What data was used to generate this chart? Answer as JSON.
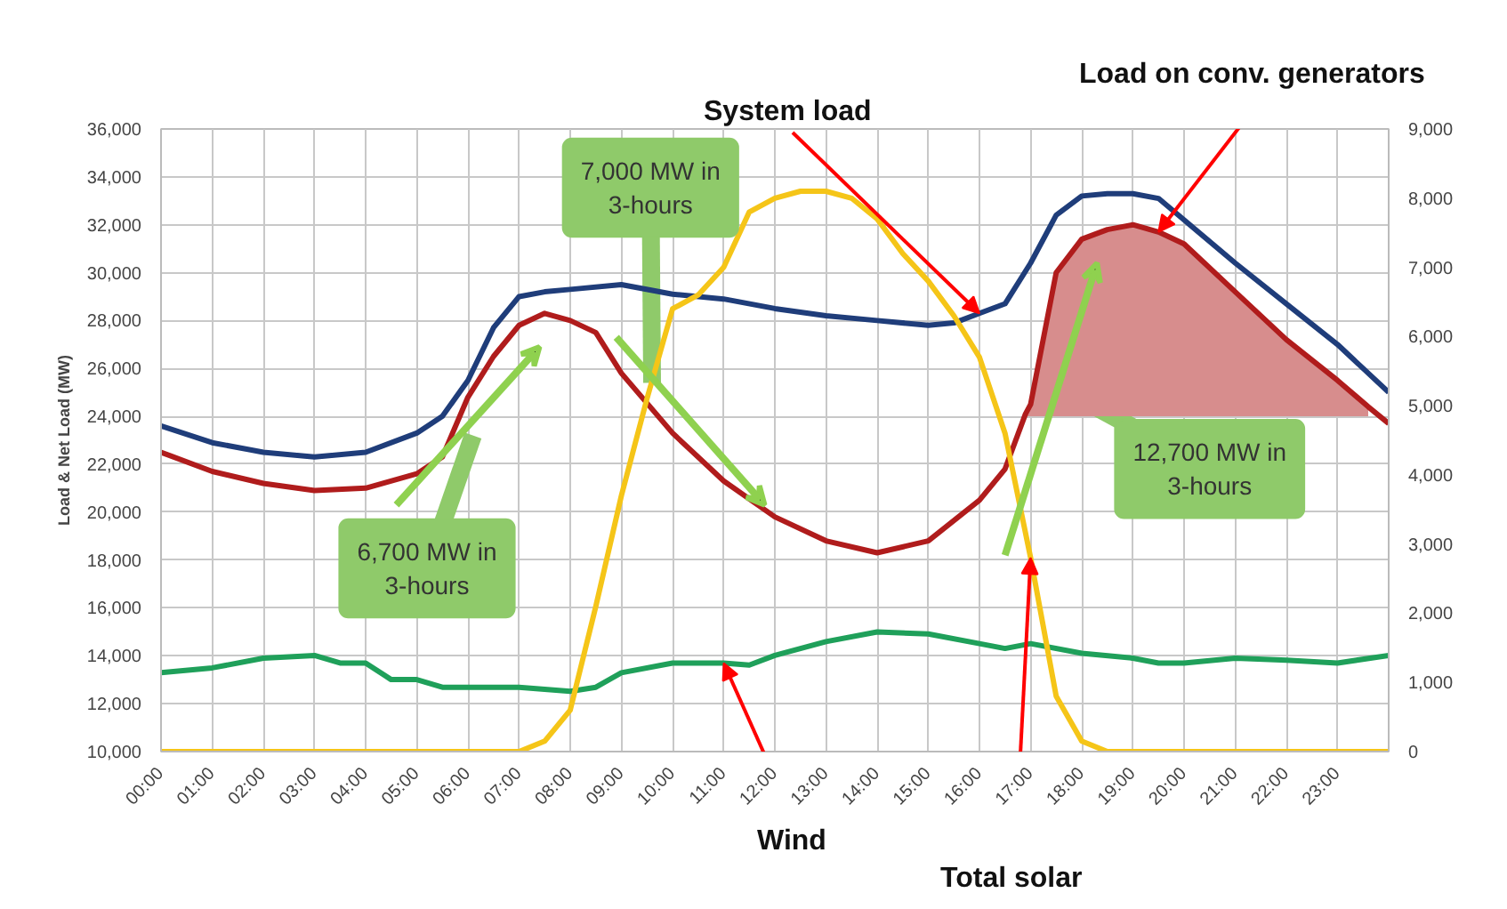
{
  "chart_data": {
    "type": "line",
    "ylabel": "Load & Net Load (MW)",
    "grid": true,
    "xlim": [
      0,
      24
    ],
    "ylim": [
      10000,
      36000
    ],
    "y2lim": [
      0,
      9000
    ],
    "xticks": [
      {
        "value": 0,
        "label": "00:00"
      },
      {
        "value": 1,
        "label": "01:00"
      },
      {
        "value": 2,
        "label": "02:00"
      },
      {
        "value": 3,
        "label": "03:00"
      },
      {
        "value": 4,
        "label": "04:00"
      },
      {
        "value": 5,
        "label": "05:00"
      },
      {
        "value": 6,
        "label": "06:00"
      },
      {
        "value": 7,
        "label": "07:00"
      },
      {
        "value": 8,
        "label": "08:00"
      },
      {
        "value": 9,
        "label": "09:00"
      },
      {
        "value": 10,
        "label": "10:00"
      },
      {
        "value": 11,
        "label": "11:00"
      },
      {
        "value": 12,
        "label": "12:00"
      },
      {
        "value": 13,
        "label": "13:00"
      },
      {
        "value": 14,
        "label": "14:00"
      },
      {
        "value": 15,
        "label": "15:00"
      },
      {
        "value": 16,
        "label": "16:00"
      },
      {
        "value": 17,
        "label": "17:00"
      },
      {
        "value": 18,
        "label": "18:00"
      },
      {
        "value": 19,
        "label": "19:00"
      },
      {
        "value": 20,
        "label": "20:00"
      },
      {
        "value": 21,
        "label": "21:00"
      },
      {
        "value": 22,
        "label": "22:00"
      },
      {
        "value": 23,
        "label": "23:00"
      }
    ],
    "yticks": [
      {
        "value": 10000,
        "label": "10,000"
      },
      {
        "value": 12000,
        "label": "12,000"
      },
      {
        "value": 14000,
        "label": "14,000"
      },
      {
        "value": 16000,
        "label": "16,000"
      },
      {
        "value": 18000,
        "label": "18,000"
      },
      {
        "value": 20000,
        "label": "20,000"
      },
      {
        "value": 22000,
        "label": "22,000"
      },
      {
        "value": 24000,
        "label": "24,000"
      },
      {
        "value": 26000,
        "label": "26,000"
      },
      {
        "value": 28000,
        "label": "28,000"
      },
      {
        "value": 30000,
        "label": "30,000"
      },
      {
        "value": 32000,
        "label": "32,000"
      },
      {
        "value": 34000,
        "label": "34,000"
      },
      {
        "value": 36000,
        "label": "36,000"
      }
    ],
    "y2ticks": [
      0,
      {
        "value": 1000,
        "label": "1,000"
      },
      {
        "value": 2000,
        "label": "2,000"
      },
      {
        "value": 3000,
        "label": "3,000"
      },
      {
        "value": 4000,
        "label": "4,000"
      },
      {
        "value": 5000,
        "label": "5,000"
      },
      {
        "value": 6000,
        "label": "6,000"
      },
      {
        "value": 7000,
        "label": "7,000"
      },
      {
        "value": 8000,
        "label": "8,000"
      },
      {
        "value": 9000,
        "label": "9,000"
      }
    ],
    "series": [
      {
        "name": "System load",
        "color": "#1f3d7a",
        "x": [
          0,
          1,
          2,
          3,
          4,
          5,
          5.5,
          6,
          6.5,
          7,
          7.5,
          8,
          9,
          10,
          11,
          12,
          13,
          14,
          15,
          15.5,
          16,
          16.5,
          17,
          17.5,
          18,
          18.5,
          19,
          19.5,
          20,
          21,
          22,
          23,
          24
        ],
        "values": [
          23600,
          22900,
          22500,
          22300,
          22500,
          23300,
          24000,
          25500,
          27700,
          29000,
          29200,
          29300,
          29500,
          29100,
          28900,
          28500,
          28200,
          28000,
          27800,
          27900,
          28300,
          28700,
          30400,
          32400,
          33200,
          33300,
          33300,
          33100,
          32200,
          30400,
          28700,
          27000,
          25000
        ]
      },
      {
        "name": "Load on conv. generators",
        "color": "#b01c1c",
        "x": [
          0,
          1,
          2,
          3,
          4,
          5,
          5.5,
          6,
          6.5,
          7,
          7.5,
          8,
          8.5,
          9,
          10,
          11,
          12,
          13,
          14,
          15,
          16,
          16.5,
          16.9,
          17,
          17.5,
          18,
          18.5,
          19,
          19.5,
          20,
          21,
          22,
          23,
          23.6,
          24
        ],
        "values": [
          22500,
          21700,
          21200,
          20900,
          21000,
          21600,
          22300,
          24800,
          26500,
          27800,
          28300,
          28000,
          27500,
          25800,
          23300,
          21300,
          19800,
          18800,
          18300,
          18800,
          20500,
          21800,
          24100,
          24500,
          30000,
          31400,
          31800,
          32000,
          31700,
          31200,
          29200,
          27200,
          25500,
          24400,
          23700
        ],
        "lower": [
          null,
          null,
          null,
          null,
          null,
          null,
          null,
          null,
          null,
          null,
          null,
          null,
          null,
          null,
          null,
          null,
          null,
          null,
          null,
          null,
          null,
          null,
          24000,
          24000,
          24000,
          24000,
          24000,
          24000,
          24000,
          24000,
          24000,
          24000,
          24000,
          24000,
          null
        ],
        "upper": [
          null,
          null,
          null,
          null,
          null,
          null,
          null,
          null,
          null,
          null,
          null,
          null,
          null,
          null,
          null,
          null,
          null,
          null,
          null,
          null,
          null,
          null,
          24100,
          24500,
          30000,
          31400,
          31800,
          32000,
          31700,
          31200,
          29200,
          27200,
          25500,
          24400,
          null
        ]
      },
      {
        "name": "Wind",
        "axis": "y2",
        "color": "#1fa05a",
        "x": [
          0,
          1,
          2,
          3,
          3.5,
          4,
          4.5,
          5,
          5.5,
          6,
          7,
          8,
          8.5,
          9,
          10,
          11,
          11.5,
          12,
          13,
          14,
          15,
          16,
          16.5,
          17,
          18,
          19,
          19.5,
          20,
          21,
          22,
          23,
          24
        ],
        "values": [
          1140,
          1210,
          1350,
          1390,
          1280,
          1280,
          1040,
          1040,
          930,
          930,
          930,
          870,
          930,
          1140,
          1280,
          1280,
          1250,
          1390,
          1590,
          1730,
          1700,
          1560,
          1490,
          1560,
          1420,
          1350,
          1280,
          1280,
          1350,
          1320,
          1280,
          1390
        ]
      },
      {
        "name": "Total solar",
        "axis": "y2",
        "color": "#f5c518",
        "x": [
          0,
          7,
          7.5,
          8,
          8.5,
          9,
          9.5,
          10,
          10.5,
          11,
          11.5,
          12,
          12.5,
          13,
          13.5,
          14,
          14.5,
          15,
          15.5,
          16,
          16.5,
          17,
          17.5,
          18,
          18.5,
          24
        ],
        "values": [
          0,
          0,
          150,
          600,
          2100,
          3700,
          5100,
          6400,
          6600,
          7000,
          7800,
          8000,
          8100,
          8100,
          8000,
          7700,
          7200,
          6800,
          6300,
          5700,
          4600,
          2800,
          800,
          150,
          0,
          0
        ]
      }
    ],
    "annotations": [
      {
        "text": "7,000 MW in 3-hours",
        "x": 9.6,
        "y": 25400
      },
      "6,700 MW in 3-hours",
      "12,700 MW in 3-hours"
    ]
  }
}
